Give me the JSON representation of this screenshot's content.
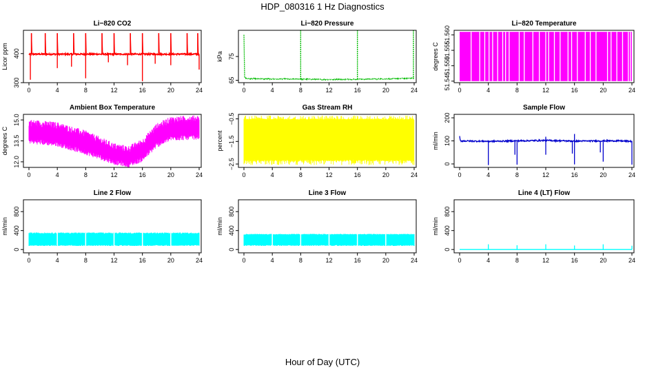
{
  "page": {
    "title": "HDP_080316  1 Hz Diagnostics",
    "xlabel": "Hour of Day (UTC)"
  },
  "colors": {
    "red": "#ff0000",
    "green": "#00bb00",
    "magenta": "#ff00ff",
    "yellow": "#ffff00",
    "blue": "#0000cc",
    "cyan": "#00ffff",
    "frame": "#000000"
  },
  "chart_data": [
    {
      "id": "co2",
      "type": "line",
      "title": "Li−820 CO2",
      "ylabel": "Licor ppm",
      "color": "red",
      "xlim": [
        0,
        24
      ],
      "ylim": [
        300,
        480
      ],
      "xticks": [
        0,
        4,
        8,
        12,
        16,
        20,
        24
      ],
      "xtick_labels": [
        "0",
        "4",
        "8",
        "12",
        "16",
        "20",
        "24"
      ],
      "yticks": [
        300,
        400
      ],
      "ytick_labels": [
        "300",
        "400"
      ],
      "baseline": 398,
      "noise": 5,
      "series": [
        {
          "x": [
            0,
            0.35,
            2.3,
            4,
            6.3,
            8,
            10.3,
            12,
            14.3,
            16,
            18.3,
            20,
            22.3,
            24
          ],
          "y": [
            398,
            470,
            470,
            470,
            470,
            470,
            470,
            470,
            470,
            470,
            470,
            470,
            470,
            470
          ]
        }
      ],
      "spikes_up": [
        0.35,
        2.3,
        4.0,
        6.3,
        8.0,
        10.3,
        12.0,
        14.3,
        16.0,
        18.3,
        20.0,
        22.3,
        23.8
      ],
      "spikes_down": [
        {
          "x": 0.2,
          "y": 310
        },
        {
          "x": 4.0,
          "y": 350
        },
        {
          "x": 6.0,
          "y": 355
        },
        {
          "x": 8.0,
          "y": 315
        },
        {
          "x": 11.2,
          "y": 370
        },
        {
          "x": 13.9,
          "y": 360
        },
        {
          "x": 16.0,
          "y": 305
        },
        {
          "x": 17.8,
          "y": 365
        },
        {
          "x": 20.0,
          "y": 360
        },
        {
          "x": 24.0,
          "y": 345
        }
      ]
    },
    {
      "id": "pressure",
      "type": "line",
      "title": "Li−820 Pressure",
      "ylabel": "kPa",
      "color": "green",
      "xlim": [
        0,
        24
      ],
      "ylim": [
        64,
        86
      ],
      "xticks": [
        0,
        4,
        8,
        12,
        16,
        20,
        24
      ],
      "xtick_labels": [
        "0",
        "4",
        "8",
        "12",
        "16",
        "20",
        "24"
      ],
      "yticks": [
        65,
        75
      ],
      "ytick_labels": [
        "65",
        "75"
      ],
      "series": [
        {
          "x": [
            0,
            0.1,
            0.5,
            2,
            6,
            10,
            12,
            14,
            18,
            22,
            24
          ],
          "y": [
            84,
            66.2,
            65.8,
            65.6,
            65.5,
            65.4,
            65.3,
            65.4,
            65.5,
            65.7,
            66
          ]
        }
      ],
      "spikes_up": [
        {
          "x": 8.0,
          "y": 86
        },
        {
          "x": 16.0,
          "y": 86
        },
        {
          "x": 23.9,
          "y": 86
        }
      ]
    },
    {
      "id": "licor-temp",
      "type": "area",
      "title": "Li−820 Temperature",
      "ylabel": "degrees C",
      "color": "magenta",
      "xlim": [
        0,
        24
      ],
      "ylim": [
        51.5445,
        51.5615
      ],
      "xticks": [
        0,
        4,
        8,
        12,
        16,
        20,
        24
      ],
      "xtick_labels": [
        "0",
        "4",
        "8",
        "12",
        "16",
        "20",
        "24"
      ],
      "yticks": [
        51.545,
        51.55,
        51.555,
        51.56
      ],
      "ytick_labels": [
        "51.545",
        "51.550",
        "51.555",
        "51.560"
      ],
      "fill_range": [
        51.545,
        51.561
      ],
      "gaps": [
        1.6,
        2.8,
        3.5,
        4.1,
        4.6,
        5.3,
        6.0,
        6.4,
        6.9,
        8.3,
        9.0,
        10.2,
        11.1,
        12.0,
        12.4,
        13.2,
        14.0,
        15.1,
        15.6,
        16.4,
        17.5,
        18.2,
        19.0,
        20.6,
        21.1,
        21.9,
        22.7,
        23.5,
        23.8
      ]
    },
    {
      "id": "box-temp",
      "type": "area",
      "title": "Ambient Box Temperature",
      "ylabel": "degrees C",
      "color": "magenta",
      "xlim": [
        0,
        24
      ],
      "ylim": [
        11.6,
        15.4
      ],
      "xticks": [
        0,
        4,
        8,
        12,
        16,
        20,
        24
      ],
      "xtick_labels": [
        "0",
        "4",
        "8",
        "12",
        "16",
        "20",
        "24"
      ],
      "yticks": [
        12,
        13.5,
        15
      ],
      "ytick_labels": [
        "12.0",
        "13.5",
        "15.0"
      ],
      "series": [
        {
          "name": "upper",
          "x": [
            0,
            4,
            8,
            12,
            14,
            16,
            18,
            20,
            24
          ],
          "y": [
            14.8,
            14.6,
            14.0,
            13.1,
            12.9,
            13.4,
            14.5,
            15.0,
            15.1
          ]
        },
        {
          "name": "lower",
          "x": [
            0,
            4,
            8,
            12,
            14,
            16,
            18,
            20,
            24
          ],
          "y": [
            13.5,
            13.3,
            12.7,
            12.0,
            11.8,
            12.2,
            13.2,
            13.7,
            13.8
          ]
        }
      ]
    },
    {
      "id": "rh",
      "type": "area",
      "title": "Gas Stream RH",
      "ylabel": "percent",
      "color": "yellow",
      "xlim": [
        0,
        24
      ],
      "ylim": [
        -2.65,
        -0.3
      ],
      "xticks": [
        0,
        4,
        8,
        12,
        16,
        20,
        24
      ],
      "xtick_labels": [
        "0",
        "4",
        "8",
        "12",
        "16",
        "20",
        "24"
      ],
      "yticks": [
        -2.5,
        -1.5,
        -0.5
      ],
      "ytick_labels": [
        "−2.5",
        "−1.5",
        "−0.5"
      ],
      "band": [
        -2.3,
        -0.55
      ],
      "jitter": [
        -2.55,
        -0.35
      ]
    },
    {
      "id": "sample-flow",
      "type": "line",
      "title": "Sample Flow",
      "ylabel": "ml/min",
      "color": "blue",
      "xlim": [
        0,
        24
      ],
      "ylim": [
        -15,
        215
      ],
      "xticks": [
        0,
        4,
        8,
        12,
        16,
        20,
        24
      ],
      "xtick_labels": [
        "0",
        "4",
        "8",
        "12",
        "16",
        "20",
        "24"
      ],
      "yticks": [
        0,
        100,
        200
      ],
      "ytick_labels": [
        "0",
        "100",
        "200"
      ],
      "series": [
        {
          "x": [
            0,
            0.1,
            2,
            4,
            8,
            12,
            16,
            20,
            22,
            24
          ],
          "y": [
            120,
            100,
            99,
            98,
            100,
            102,
            99,
            100,
            100,
            98
          ]
        }
      ],
      "dips": [
        {
          "x": 4.0,
          "y": -5
        },
        {
          "x": 8.0,
          "y": -3
        },
        {
          "x": 12.0,
          "y": 40
        },
        {
          "x": 16.0,
          "y": -2
        },
        {
          "x": 20.0,
          "y": 10
        },
        {
          "x": 24.0,
          "y": -3
        },
        {
          "x": 7.7,
          "y": 40
        },
        {
          "x": 15.7,
          "y": 45
        },
        {
          "x": 19.6,
          "y": 50
        }
      ],
      "peaks": [
        {
          "x": 12.0,
          "y": 118
        },
        {
          "x": 16.0,
          "y": 130
        }
      ]
    },
    {
      "id": "line2-flow",
      "type": "area",
      "title": "Line 2 Flow",
      "ylabel": "ml/min",
      "color": "cyan",
      "xlim": [
        0,
        24
      ],
      "ylim": [
        -70,
        1050
      ],
      "xticks": [
        0,
        4,
        8,
        12,
        16,
        20,
        24
      ],
      "xtick_labels": [
        "0",
        "4",
        "8",
        "12",
        "16",
        "20",
        "24"
      ],
      "yticks": [
        0,
        400,
        800
      ],
      "ytick_labels": [
        "0",
        "400",
        "800"
      ],
      "band": [
        100,
        330
      ],
      "top_jitter": 360,
      "gaps": [
        4.0,
        8.0,
        12.0,
        16.0,
        20.0
      ]
    },
    {
      "id": "line3-flow",
      "type": "area",
      "title": "Line 3 Flow",
      "ylabel": "ml/min",
      "color": "cyan",
      "xlim": [
        0,
        24
      ],
      "ylim": [
        -70,
        1050
      ],
      "xticks": [
        0,
        4,
        8,
        12,
        16,
        20,
        24
      ],
      "xtick_labels": [
        "0",
        "4",
        "8",
        "12",
        "16",
        "20",
        "24"
      ],
      "yticks": [
        0,
        400,
        800
      ],
      "ytick_labels": [
        "0",
        "400",
        "800"
      ],
      "band": [
        100,
        310
      ],
      "top_jitter": 330,
      "gaps": [
        4.0,
        8.0,
        12.0,
        16.0,
        20.0
      ]
    },
    {
      "id": "line4-flow",
      "type": "line",
      "title": "Line 4 (LT) Flow",
      "ylabel": "ml/min",
      "color": "cyan",
      "xlim": [
        0,
        24
      ],
      "ylim": [
        -70,
        1050
      ],
      "xticks": [
        0,
        4,
        8,
        12,
        16,
        20,
        24
      ],
      "xtick_labels": [
        "0",
        "4",
        "8",
        "12",
        "16",
        "20",
        "24"
      ],
      "yticks": [
        0,
        400,
        800
      ],
      "ytick_labels": [
        "0",
        "400",
        "800"
      ],
      "series": [
        {
          "x": [
            0,
            24
          ],
          "y": [
            0,
            0
          ]
        }
      ],
      "spikes_up": [
        {
          "x": 4.0,
          "y": 110
        },
        {
          "x": 8.0,
          "y": 90
        },
        {
          "x": 12.0,
          "y": 110
        },
        {
          "x": 16.0,
          "y": 85
        },
        {
          "x": 20.0,
          "y": 110
        },
        {
          "x": 24.0,
          "y": 80
        }
      ]
    }
  ]
}
